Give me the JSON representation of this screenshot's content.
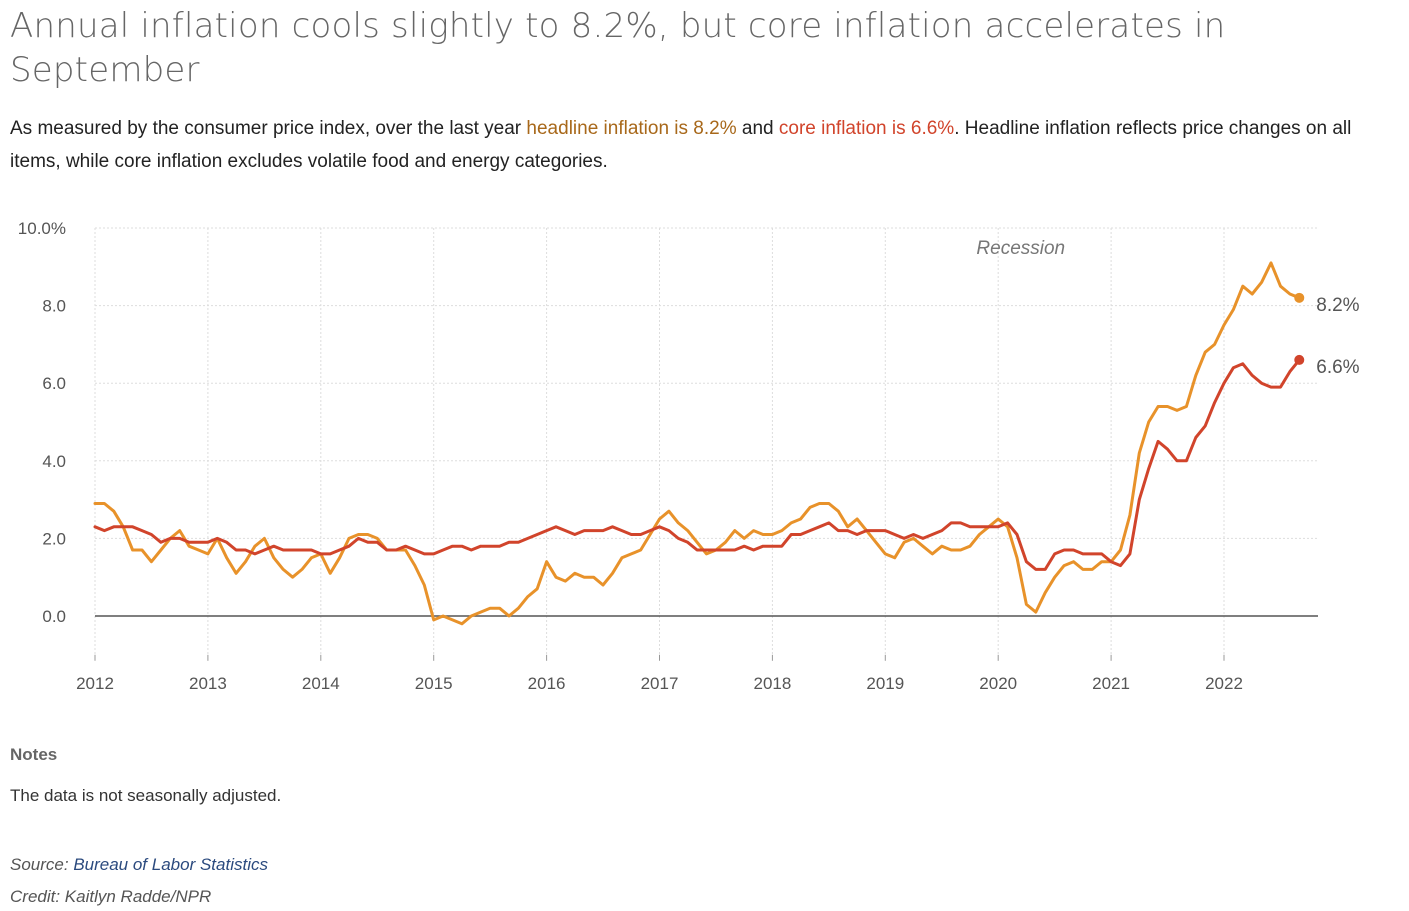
{
  "title": "Annual inflation cools slightly to 8.2%, but core inflation accelerates in September",
  "subtitle": {
    "part1": "As measured by the consumer price index, over the last year ",
    "headline_phrase": "headline inflation is 8.2%",
    "part2": " and ",
    "core_phrase": "core inflation is 6.6%",
    "part3": ". Headline inflation reflects price changes on all items, while core inflation excludes volatile food and energy categories."
  },
  "notes": {
    "label": "Notes",
    "text": "The data is not seasonally adjusted."
  },
  "source": {
    "label": "Source: ",
    "link_text": "Bureau of Labor Statistics"
  },
  "credit": "Credit: Kaitlyn Radde/NPR",
  "colors": {
    "headline": "#e8922a",
    "core": "#d1442b",
    "headline_text": "#a8681a",
    "grid": "#dddddd",
    "zero_line": "#555555"
  },
  "chart_data": {
    "type": "line",
    "x_start": "2012-01",
    "x_frequency": "monthly",
    "ylim": [
      -1,
      10
    ],
    "yticks": [
      0,
      2,
      4,
      6,
      8,
      10
    ],
    "ytick_labels": [
      "0.0",
      "2.0",
      "4.0",
      "6.0",
      "8.0",
      "10.0%"
    ],
    "xticks": [
      "2012",
      "2013",
      "2014",
      "2015",
      "2016",
      "2017",
      "2018",
      "2019",
      "2020",
      "2021",
      "2022"
    ],
    "annotations": [
      {
        "text": "Recession"
      }
    ],
    "end_labels": [
      "8.2%",
      "6.6%"
    ],
    "series": [
      {
        "key": "headline",
        "values": [
          2.9,
          2.9,
          2.7,
          2.3,
          1.7,
          1.7,
          1.4,
          1.7,
          2.0,
          2.2,
          1.8,
          1.7,
          1.6,
          2.0,
          1.5,
          1.1,
          1.4,
          1.8,
          2.0,
          1.5,
          1.2,
          1.0,
          1.2,
          1.5,
          1.6,
          1.1,
          1.5,
          2.0,
          2.1,
          2.1,
          2.0,
          1.7,
          1.7,
          1.7,
          1.3,
          0.8,
          -0.1,
          0.0,
          -0.1,
          -0.2,
          0.0,
          0.1,
          0.2,
          0.2,
          0.0,
          0.2,
          0.5,
          0.7,
          1.4,
          1.0,
          0.9,
          1.1,
          1.0,
          1.0,
          0.8,
          1.1,
          1.5,
          1.6,
          1.7,
          2.1,
          2.5,
          2.7,
          2.4,
          2.2,
          1.9,
          1.6,
          1.7,
          1.9,
          2.2,
          2.0,
          2.2,
          2.1,
          2.1,
          2.2,
          2.4,
          2.5,
          2.8,
          2.9,
          2.9,
          2.7,
          2.3,
          2.5,
          2.2,
          1.9,
          1.6,
          1.5,
          1.9,
          2.0,
          1.8,
          1.6,
          1.8,
          1.7,
          1.7,
          1.8,
          2.1,
          2.3,
          2.5,
          2.3,
          1.5,
          0.3,
          0.1,
          0.6,
          1.0,
          1.3,
          1.4,
          1.2,
          1.2,
          1.4,
          1.4,
          1.7,
          2.6,
          4.2,
          5.0,
          5.4,
          5.4,
          5.3,
          5.4,
          6.2,
          6.8,
          7.0,
          7.5,
          7.9,
          8.5,
          8.3,
          8.6,
          9.1,
          8.5,
          8.3,
          8.2
        ]
      },
      {
        "key": "core",
        "values": [
          2.3,
          2.2,
          2.3,
          2.3,
          2.3,
          2.2,
          2.1,
          1.9,
          2.0,
          2.0,
          1.9,
          1.9,
          1.9,
          2.0,
          1.9,
          1.7,
          1.7,
          1.6,
          1.7,
          1.8,
          1.7,
          1.7,
          1.7,
          1.7,
          1.6,
          1.6,
          1.7,
          1.8,
          2.0,
          1.9,
          1.9,
          1.7,
          1.7,
          1.8,
          1.7,
          1.6,
          1.6,
          1.7,
          1.8,
          1.8,
          1.7,
          1.8,
          1.8,
          1.8,
          1.9,
          1.9,
          2.0,
          2.1,
          2.2,
          2.3,
          2.2,
          2.1,
          2.2,
          2.2,
          2.2,
          2.3,
          2.2,
          2.1,
          2.1,
          2.2,
          2.3,
          2.2,
          2.0,
          1.9,
          1.7,
          1.7,
          1.7,
          1.7,
          1.7,
          1.8,
          1.7,
          1.8,
          1.8,
          1.8,
          2.1,
          2.1,
          2.2,
          2.3,
          2.4,
          2.2,
          2.2,
          2.1,
          2.2,
          2.2,
          2.2,
          2.1,
          2.0,
          2.1,
          2.0,
          2.1,
          2.2,
          2.4,
          2.4,
          2.3,
          2.3,
          2.3,
          2.3,
          2.4,
          2.1,
          1.4,
          1.2,
          1.2,
          1.6,
          1.7,
          1.7,
          1.6,
          1.6,
          1.6,
          1.4,
          1.3,
          1.6,
          3.0,
          3.8,
          4.5,
          4.3,
          4.0,
          4.0,
          4.6,
          4.9,
          5.5,
          6.0,
          6.4,
          6.5,
          6.2,
          6.0,
          5.9,
          5.9,
          6.3,
          6.6
        ]
      }
    ]
  }
}
